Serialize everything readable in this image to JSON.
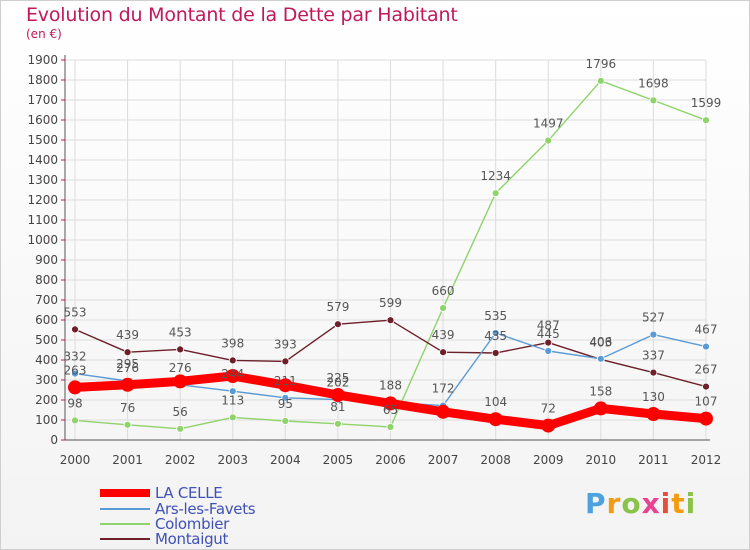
{
  "title": "Evolution du Montant de la Dette par Habitant",
  "unit": "(en €)",
  "logo": "Proxiti",
  "chart_data": {
    "type": "line",
    "x": [
      "2000",
      "2001",
      "2002",
      "2003",
      "2004",
      "2005",
      "2006",
      "2007",
      "2008",
      "2009",
      "2010",
      "2011",
      "2012"
    ],
    "yticks": [
      0,
      100,
      200,
      300,
      400,
      500,
      600,
      700,
      800,
      900,
      1000,
      1100,
      1200,
      1300,
      1400,
      1500,
      1600,
      1700,
      1800,
      1900
    ],
    "ylim": [
      0,
      1900
    ],
    "grid": true,
    "legend_position": "bottom-left",
    "series": [
      {
        "name": "LA CELLE",
        "color": "#ff0000",
        "values": [
          263,
          276,
          293,
          320,
          274,
          225,
          183,
          141,
          104,
          72,
          158,
          130,
          107
        ],
        "labels": [
          "263",
          "276",
          "",
          "",
          "",
          "225",
          "",
          "",
          "104",
          "72",
          "158",
          "130",
          "107"
        ]
      },
      {
        "name": "Ars-les-Favets",
        "color": "#5b9bd5",
        "values": [
          332,
          295,
          276,
          244,
          211,
          202,
          188,
          172,
          535,
          445,
          406,
          527,
          467
        ],
        "labels": [
          "332",
          "295",
          "276",
          "244",
          "211",
          "202",
          "188",
          "172",
          "535",
          "445",
          "406",
          "527",
          "467"
        ]
      },
      {
        "name": "Colombier",
        "color": "#8fd36b",
        "values": [
          98,
          76,
          56,
          113,
          95,
          81,
          65,
          660,
          1234,
          1497,
          1796,
          1698,
          1599
        ],
        "labels": [
          "98",
          "76",
          "56",
          "113",
          "95",
          "81",
          "65",
          "660",
          "1234",
          "1497",
          "1796",
          "1698",
          "1599"
        ]
      },
      {
        "name": "Montaigut",
        "color": "#6d1f2a",
        "values": [
          553,
          439,
          453,
          398,
          393,
          579,
          599,
          439,
          435,
          487,
          403,
          337,
          267
        ],
        "labels": [
          "553",
          "439",
          "453",
          "398",
          "393",
          "579",
          "599",
          "439",
          "435",
          "487",
          "403",
          "337",
          "267"
        ]
      }
    ]
  }
}
